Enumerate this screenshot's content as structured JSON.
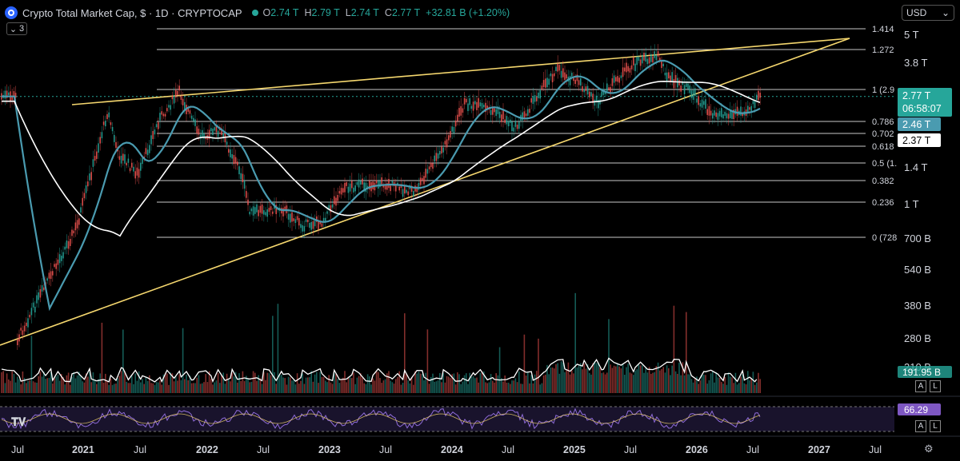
{
  "header": {
    "title": "Crypto Total Market Cap, $ · 1D · CRYPTOCAP",
    "ohlc": [
      {
        "k": "O",
        "v": "2.74 T"
      },
      {
        "k": "H",
        "v": "2.79 T"
      },
      {
        "k": "L",
        "v": "2.74 T"
      },
      {
        "k": "C",
        "v": "2.77 T"
      },
      {
        "k": "",
        "v": "+32.81 B (+1.20%)"
      }
    ],
    "collapse_count": "3",
    "currency": "USD"
  },
  "icons": {
    "logo": "cryptocap-logo-icon",
    "collapse": "chevron-down-icon",
    "currency": "chevron-down-icon",
    "settings": "gear-icon",
    "brand": "tradingview-logo-icon"
  },
  "colors": {
    "up": "#26a69a",
    "down": "#ef5350",
    "ema_fast": "#4a9bb0",
    "ma_slow": "#ffffff",
    "trendline": "#f5d76e",
    "fib": "#c8c8c8",
    "rsi": "#8e6bd8"
  },
  "price_axis": {
    "labels": [
      "5 T",
      "3.8 T",
      "1.4 T",
      "1 T",
      "700 B",
      "540 B",
      "380 B",
      "280 B",
      "210 B"
    ],
    "badges": [
      {
        "text": "2.77 T",
        "sub": "06:58:07",
        "color": "#26a69a"
      },
      {
        "text": "2.46 T",
        "color": "#4a9bb0"
      },
      {
        "text": "2.37 T",
        "color": "#ffffff"
      }
    ],
    "volume_badge": "191.95 B",
    "rsi_badge": "66.29"
  },
  "fib_levels": [
    {
      "label": "1.414"
    },
    {
      "label": "1.272"
    },
    {
      "label": "1 (2.9"
    },
    {
      "label": "0.786"
    },
    {
      "label": "0.702"
    },
    {
      "label": "0.618"
    },
    {
      "label": "0.5 (1."
    },
    {
      "label": "0.382"
    },
    {
      "label": "0.236"
    },
    {
      "label": "0 (728"
    }
  ],
  "panes": {
    "volume_buttons": [
      "A",
      "L"
    ],
    "rsi_buttons": [
      "A",
      "L"
    ]
  },
  "time_axis": {
    "labels": [
      "Jul",
      "2021",
      "Jul",
      "2022",
      "Jul",
      "2023",
      "Jul",
      "2024",
      "Jul",
      "2025",
      "Jul",
      "2026",
      "Jul",
      "2027",
      "Jul"
    ]
  },
  "chart_data": {
    "type": "line",
    "title": "Crypto Total Market Cap, $ · 1D · CRYPTOCAP",
    "y_scale": "log",
    "x": [
      "2020-07",
      "2021-01",
      "2021-04",
      "2021-05",
      "2021-07",
      "2021-09",
      "2021-11",
      "2022-01",
      "2022-03",
      "2022-05",
      "2022-06",
      "2022-09",
      "2022-11",
      "2023-01",
      "2023-03",
      "2023-07",
      "2023-10",
      "2024-01",
      "2024-03",
      "2024-06",
      "2024-08",
      "2024-11",
      "2024-12",
      "2025-02",
      "2025-04",
      "2025-06",
      "2025-08",
      "2025-10",
      "2025-11",
      "2026-01",
      "2026-03",
      "2026-05",
      "2026-07",
      "2026-08"
    ],
    "series": [
      {
        "values": [
          0.26,
          0.8,
          2.4,
          1.6,
          1.3,
          2.2,
          2.9,
          1.9,
          2.0,
          1.35,
          0.9,
          0.95,
          0.8,
          0.83,
          1.15,
          1.2,
          1.1,
          1.7,
          2.6,
          2.4,
          2.05,
          3.2,
          3.6,
          3.2,
          2.6,
          3.3,
          3.9,
          4.1,
          3.3,
          2.95,
          2.4,
          2.3,
          2.5,
          2.77
        ]
      }
    ]
  }
}
